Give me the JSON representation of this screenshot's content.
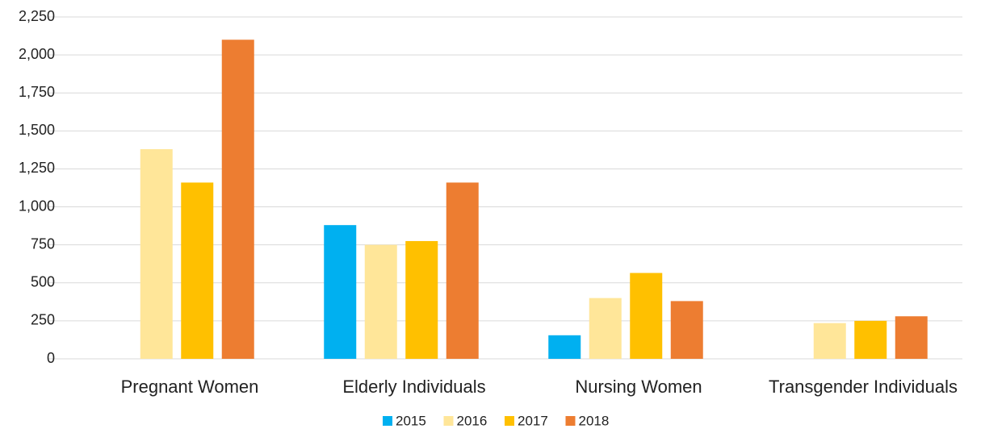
{
  "chart_data": {
    "type": "bar",
    "categories": [
      "Pregnant Women",
      "Elderly Individuals",
      "Nursing Women",
      "Transgender Individuals"
    ],
    "series": [
      {
        "name": "2015",
        "color": "#00b0f0",
        "values": [
          null,
          880,
          155,
          null
        ]
      },
      {
        "name": "2016",
        "color": "#ffe699",
        "values": [
          1380,
          750,
          400,
          235
        ]
      },
      {
        "name": "2017",
        "color": "#ffc000",
        "values": [
          1160,
          775,
          565,
          250
        ]
      },
      {
        "name": "2018",
        "color": "#ed7d31",
        "values": [
          2100,
          1160,
          380,
          280
        ]
      }
    ],
    "ylim": [
      0,
      2250
    ],
    "yticks": [
      0,
      250,
      500,
      750,
      {
        "value": 1000,
        "label": "1,000"
      },
      {
        "value": 1250,
        "label": "1,250"
      },
      {
        "value": 1500,
        "label": "1,500"
      },
      {
        "value": 1750,
        "label": "1,750"
      },
      {
        "value": 2000,
        "label": "2,000"
      },
      {
        "value": 2250,
        "label": "2,250"
      }
    ],
    "grid": true,
    "legend": "bottom"
  }
}
